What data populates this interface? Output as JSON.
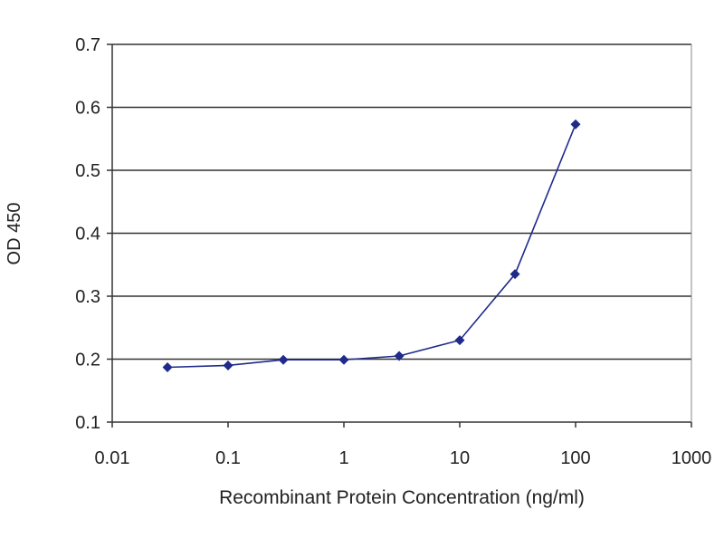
{
  "chart_data": {
    "type": "line",
    "title": "",
    "xlabel": "Recombinant Protein Concentration (ng/ml)",
    "ylabel": "OD 450",
    "x_scale": "log",
    "xlim": [
      0.01,
      1000
    ],
    "ylim": [
      0.1,
      0.7
    ],
    "x_ticks": [
      0.01,
      0.1,
      1,
      10,
      100,
      1000
    ],
    "x_tick_labels": [
      "0.01",
      "0.1",
      "1",
      "10",
      "100",
      "1000"
    ],
    "y_ticks": [
      0.1,
      0.2,
      0.3,
      0.4,
      0.5,
      0.6,
      0.7
    ],
    "y_tick_labels": [
      "0.1",
      "0.2",
      "0.3",
      "0.4",
      "0.5",
      "0.6",
      "0.7"
    ],
    "grid": "horizontal",
    "legend": "none",
    "series": [
      {
        "x": [
          0.03,
          0.1,
          0.3,
          1,
          3,
          10,
          30,
          100
        ],
        "y": [
          0.187,
          0.19,
          0.199,
          0.199,
          0.205,
          0.23,
          0.335,
          0.573
        ]
      }
    ],
    "colors": {
      "series": "#1f2a8a",
      "grid": "#333333",
      "axis": "#333333"
    }
  }
}
